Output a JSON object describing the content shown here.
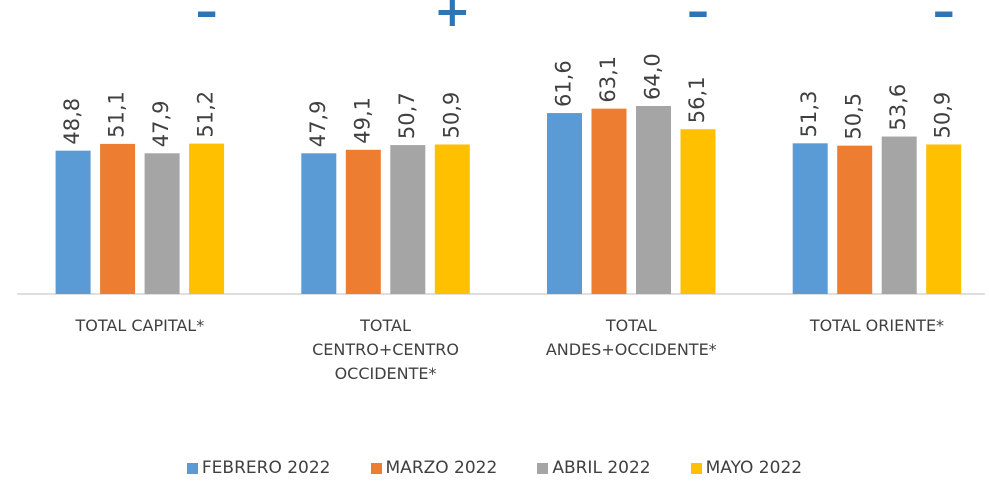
{
  "chart_data": {
    "type": "bar",
    "categories": [
      "TOTAL CAPITAL*",
      "TOTAL CENTRO+CENTRO OCCIDENTE*",
      "TOTAL ANDES+OCCIDENTE*",
      "TOTAL ORIENTE*"
    ],
    "series": [
      {
        "name": "FEBRERO 2022",
        "color": "#5b9bd5",
        "values": [
          48.8,
          47.9,
          61.6,
          51.3
        ],
        "value_labels": [
          "48,8",
          "47,9",
          "61,6",
          "51,3"
        ]
      },
      {
        "name": "MARZO 2022",
        "color": "#ed7d31",
        "values": [
          51.1,
          49.1,
          63.1,
          50.5
        ],
        "value_labels": [
          "51,1",
          "49,1",
          "63,1",
          "50,5"
        ]
      },
      {
        "name": "ABRIL 2022",
        "color": "#a5a5a5",
        "values": [
          47.9,
          50.7,
          64.0,
          53.6
        ],
        "value_labels": [
          "47,9",
          "50,7",
          "64,0",
          "53,6"
        ]
      },
      {
        "name": "MAYO 2022",
        "color": "#ffc000",
        "values": [
          51.2,
          50.9,
          56.1,
          50.9
        ],
        "value_labels": [
          "51,2",
          "50,9",
          "56,1",
          "50,9"
        ]
      }
    ],
    "annotations": [
      "–",
      "+",
      "–",
      "–"
    ],
    "annotation_color": "#2e75b6",
    "ylim": [
      0,
      80
    ]
  }
}
